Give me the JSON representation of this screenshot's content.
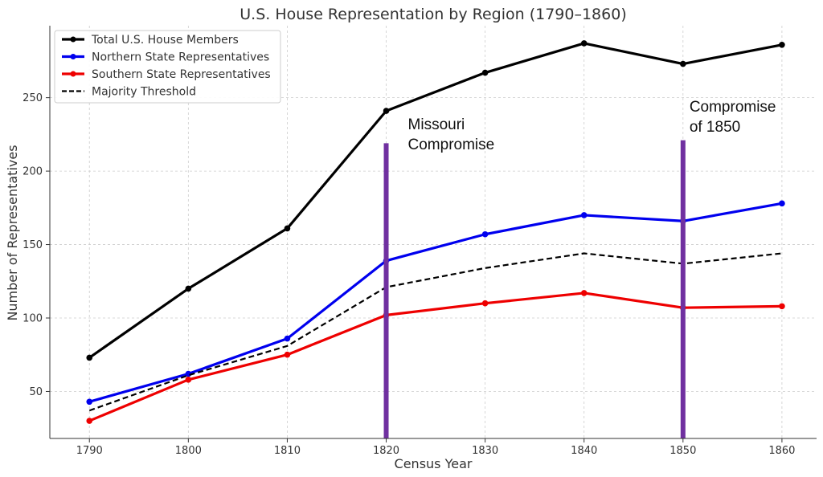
{
  "chart_data": {
    "type": "line",
    "title": "U.S. House Representation by Region (1790–1860)",
    "xlabel": "Census Year",
    "ylabel": "Number of Representatives",
    "x": [
      1790,
      1800,
      1810,
      1820,
      1830,
      1840,
      1850,
      1860
    ],
    "xlim": [
      1786,
      1863.5
    ],
    "ylim": [
      18,
      299
    ],
    "yticks": [
      50,
      100,
      150,
      200,
      250
    ],
    "grid": true,
    "legend_position": "top-left",
    "series": [
      {
        "name": "Total U.S. House Members",
        "color": "#000000",
        "style": "solid",
        "markers": true,
        "values": [
          73,
          120,
          161,
          241,
          267,
          287,
          273,
          286
        ]
      },
      {
        "name": "Northern State Representatives",
        "color": "#0000ee",
        "style": "solid",
        "markers": true,
        "values": [
          43,
          62,
          86,
          139,
          157,
          170,
          166,
          178
        ]
      },
      {
        "name": "Southern State Representatives",
        "color": "#ee0000",
        "style": "solid",
        "markers": true,
        "values": [
          30,
          58,
          75,
          102,
          110,
          117,
          107,
          108
        ]
      },
      {
        "name": "Majority Threshold",
        "color": "#000000",
        "style": "dashed",
        "markers": false,
        "values": [
          37,
          61,
          81,
          121,
          134,
          144,
          137,
          144
        ]
      }
    ],
    "annotations": [
      {
        "x": 1820,
        "y_top": 219,
        "color": "#7030a0",
        "lines": [
          "Missouri",
          "Compromise"
        ]
      },
      {
        "x": 1850,
        "y_top": 221,
        "color": "#7030a0",
        "lines": [
          "Compromise",
          "of 1850"
        ]
      }
    ]
  }
}
